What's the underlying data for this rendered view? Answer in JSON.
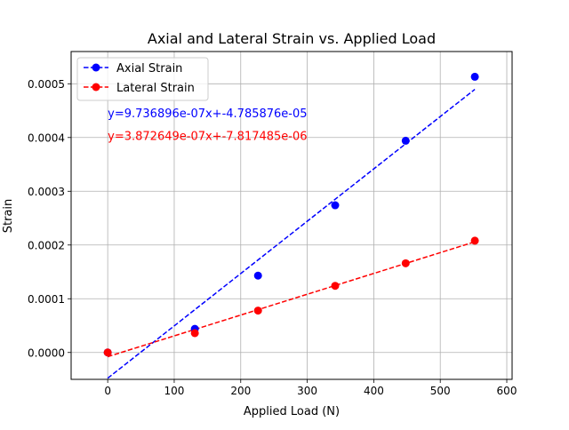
{
  "chart_data": {
    "type": "scatter",
    "title": "Axial and Lateral Strain vs. Applied Load",
    "xlabel": "Applied Load (N)",
    "ylabel": "Strain",
    "xlim": [
      -55,
      608
    ],
    "ylim": [
      -5e-05,
      0.00056
    ],
    "xticks": [
      0,
      100,
      200,
      300,
      400,
      500,
      600
    ],
    "yticks": [
      0,
      0.0001,
      0.0002,
      0.0003,
      0.0004,
      0.0005
    ],
    "xtick_labels": [
      "0",
      "100",
      "200",
      "300",
      "400",
      "500",
      "600"
    ],
    "ytick_labels": [
      "0.0000",
      "0.0001",
      "0.0002",
      "0.0003",
      "0.0004",
      "0.0005"
    ],
    "grid": true,
    "legend_position": "top-left",
    "series": [
      {
        "name": "Axial Strain",
        "color": "#0000ff",
        "x": [
          0,
          131,
          226,
          342,
          448,
          552
        ],
        "y": [
          0,
          4.4e-05,
          0.000143,
          0.000274,
          0.000394,
          0.000513
        ],
        "fit": {
          "slope": 9.736896e-07,
          "intercept": -4.785876e-05,
          "x_range": [
            0,
            552
          ]
        }
      },
      {
        "name": "Lateral Strain",
        "color": "#ff0000",
        "x": [
          0,
          131,
          226,
          342,
          448,
          552
        ],
        "y": [
          0,
          3.6e-05,
          7.8e-05,
          0.000124,
          0.000166,
          0.000208
        ],
        "fit": {
          "slope": 3.872649e-07,
          "intercept": -7.817485e-06,
          "x_range": [
            0,
            552
          ]
        }
      }
    ],
    "annotations": [
      {
        "text": "y=9.736896e-07x+-4.785876e-05",
        "color": "#0000ff",
        "x": 0,
        "y": 0.000445
      },
      {
        "text": "y=3.872649e-07x+-7.817485e-06",
        "color": "#ff0000",
        "x": 0,
        "y": 0.000403
      }
    ]
  }
}
